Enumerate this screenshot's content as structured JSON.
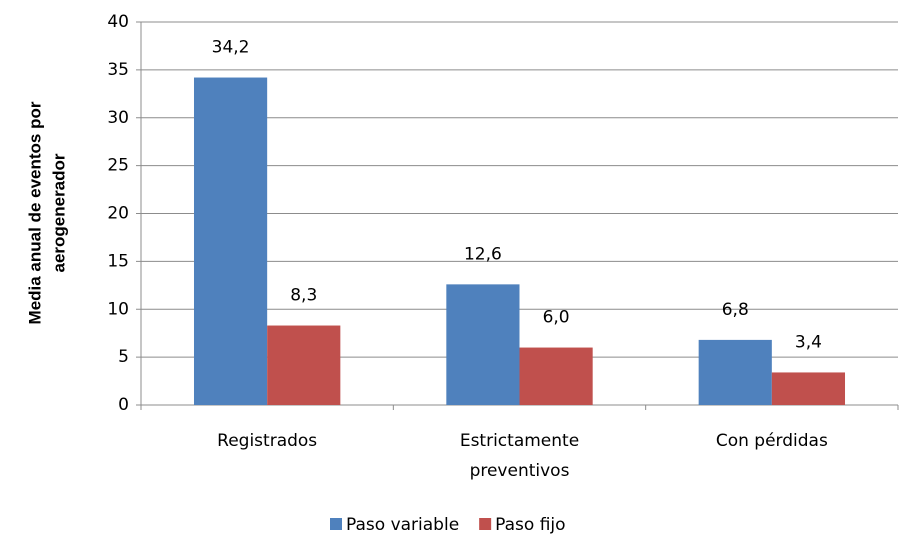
{
  "chart_data": {
    "type": "bar",
    "y_label": [
      "Media anual de eventos por",
      "aerogenerador"
    ],
    "categories": [
      "Registrados",
      "Estrictamente preventivos",
      "Con pérdidas"
    ],
    "series": [
      {
        "name": "Paso variable",
        "color": "#4f81bd",
        "values": [
          34.2,
          12.6,
          6.8
        ],
        "value_labels": [
          "34,2",
          "12,6",
          "6,8"
        ]
      },
      {
        "name": "Paso fijo",
        "color": "#c0504d",
        "values": [
          8.3,
          6.0,
          3.4
        ],
        "value_labels": [
          "8,3",
          "6,0",
          "3,4"
        ]
      }
    ],
    "ylim": [
      0,
      40
    ],
    "yticks": [
      0,
      5,
      10,
      15,
      20,
      25,
      30,
      35,
      40
    ],
    "grid": true,
    "legend": "bottom"
  }
}
